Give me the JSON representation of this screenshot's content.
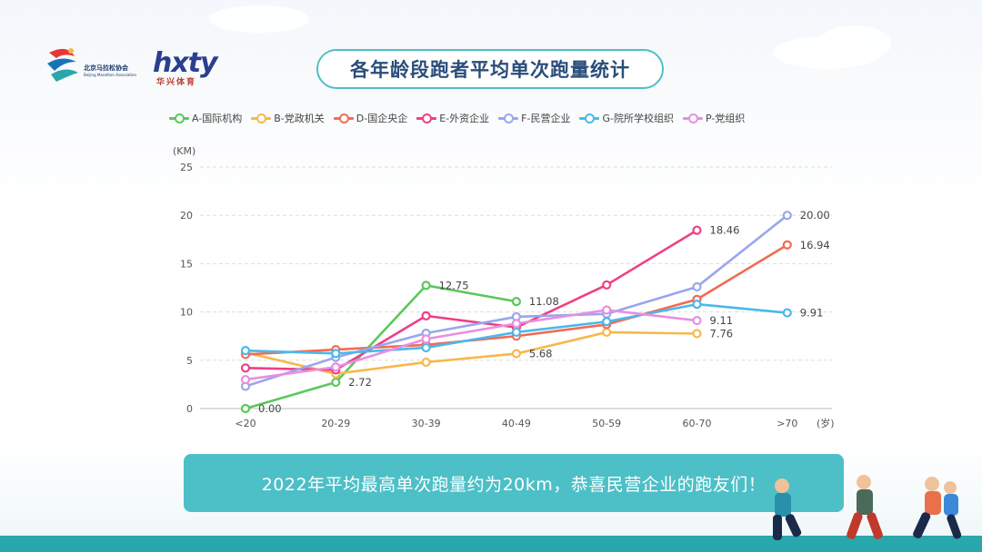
{
  "header": {
    "org_name": "北京马拉松协会",
    "org_sub": "Beijing Marathon Association",
    "brand_logo": "hxty",
    "brand_sub": "华兴体育",
    "title": "各年龄段跑者平均单次跑量统计"
  },
  "chart_data": {
    "type": "line",
    "title": "各年龄段跑者平均单次跑量统计",
    "ylabel": "(KM)",
    "xlabel": "(岁)",
    "ylim": [
      0,
      25
    ],
    "yticks": [
      0,
      5,
      10,
      15,
      20,
      25
    ],
    "categories": [
      "<20",
      "20-29",
      "30-39",
      "40-49",
      "50-59",
      "60-70",
      ">70"
    ],
    "series": [
      {
        "name": "A-国际机构",
        "color": "#5bc85b",
        "values": [
          0.0,
          2.72,
          12.75,
          11.08,
          null,
          null,
          null
        ],
        "labels": {
          "0": "0.00",
          "1": "2.72",
          "2": "12.75",
          "3": "11.08"
        }
      },
      {
        "name": "B-党政机关",
        "color": "#f7b84a",
        "values": [
          5.8,
          3.6,
          4.8,
          5.68,
          7.9,
          7.76,
          null
        ],
        "labels": {
          "3": "5.68",
          "5": "7.76"
        }
      },
      {
        "name": "D-国企央企",
        "color": "#f26b55",
        "values": [
          5.6,
          6.1,
          6.6,
          7.5,
          8.7,
          11.3,
          16.94
        ],
        "labels": {
          "6": "16.94"
        }
      },
      {
        "name": "E-外资企业",
        "color": "#ee3f84",
        "values": [
          4.2,
          4.0,
          9.6,
          8.4,
          12.8,
          18.46,
          null
        ],
        "labels": {
          "5": "18.46"
        }
      },
      {
        "name": "F-民营企业",
        "color": "#9aa6ec",
        "values": [
          2.3,
          5.3,
          7.8,
          9.5,
          9.8,
          12.6,
          20.0
        ],
        "labels": {
          "6": "20.00"
        }
      },
      {
        "name": "G-院所学校组织",
        "color": "#4ab9ea",
        "values": [
          6.0,
          5.7,
          6.3,
          7.9,
          9.0,
          10.8,
          9.91
        ],
        "labels": {
          "6": "9.91"
        }
      },
      {
        "name": "P-党组织",
        "color": "#e88fe0",
        "values": [
          3.0,
          4.3,
          7.2,
          8.8,
          10.2,
          9.11,
          null
        ],
        "labels": {
          "5": "9.11"
        }
      }
    ]
  },
  "banner": {
    "text": "2022年平均最高单次跑量约为20km，恭喜民营企业的跑友们！"
  }
}
